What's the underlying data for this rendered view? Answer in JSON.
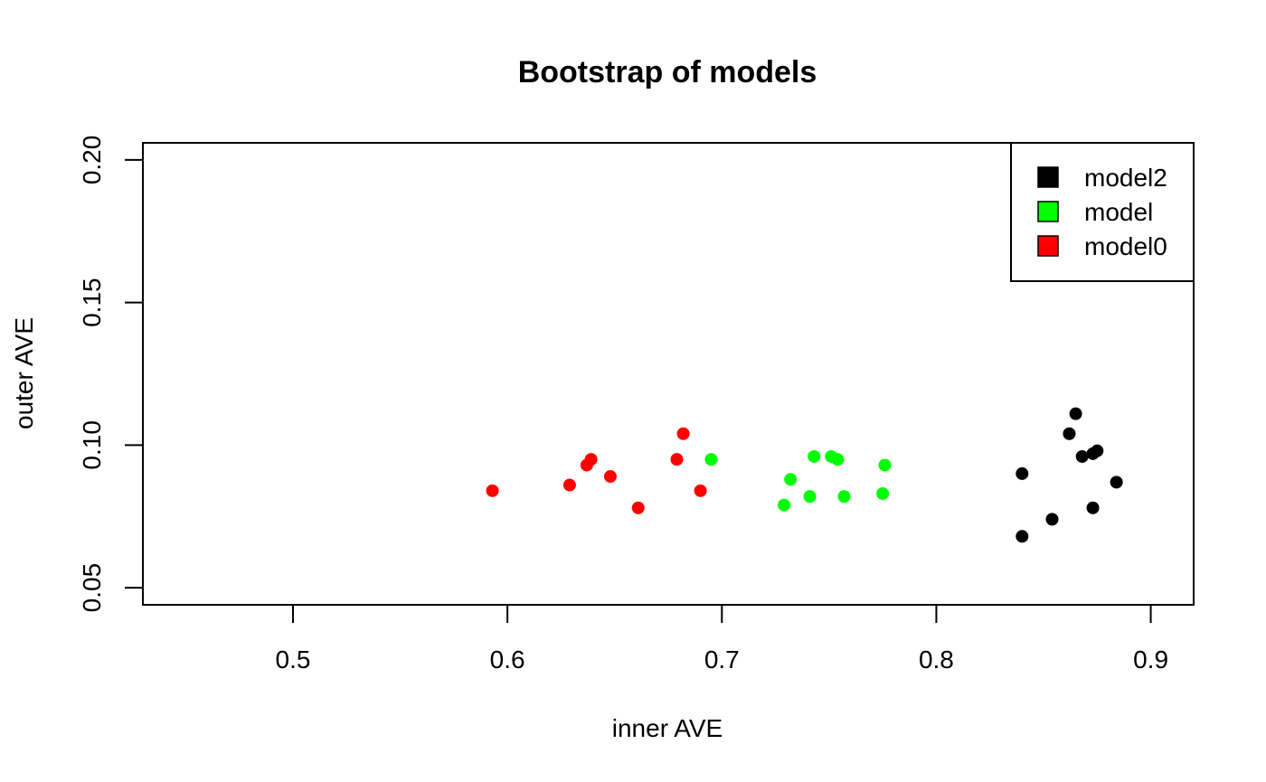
{
  "chart_data": {
    "type": "scatter",
    "title": "Bootstrap of models",
    "xlabel": "inner AVE",
    "ylabel": "outer AVE",
    "xlim": [
      0.43,
      0.92
    ],
    "ylim": [
      0.044,
      0.206
    ],
    "x_ticks": [
      0.5,
      0.6,
      0.7,
      0.8,
      0.9
    ],
    "x_tick_labels": [
      "0.5",
      "0.6",
      "0.7",
      "0.8",
      "0.9"
    ],
    "y_ticks": [
      0.05,
      0.1,
      0.15,
      0.2
    ],
    "y_tick_labels": [
      "0.05",
      "0.10",
      "0.15",
      "0.20"
    ],
    "grid": false,
    "legend_position": "top-right",
    "series": [
      {
        "name": "model2",
        "color": "#000000",
        "points": [
          [
            0.84,
            0.09
          ],
          [
            0.84,
            0.068
          ],
          [
            0.854,
            0.074
          ],
          [
            0.862,
            0.104
          ],
          [
            0.865,
            0.111
          ],
          [
            0.868,
            0.096
          ],
          [
            0.873,
            0.097
          ],
          [
            0.875,
            0.098
          ],
          [
            0.873,
            0.078
          ],
          [
            0.884,
            0.087
          ]
        ]
      },
      {
        "name": "model",
        "color": "#00ff00",
        "points": [
          [
            0.695,
            0.095
          ],
          [
            0.729,
            0.079
          ],
          [
            0.732,
            0.088
          ],
          [
            0.741,
            0.082
          ],
          [
            0.743,
            0.096
          ],
          [
            0.751,
            0.096
          ],
          [
            0.754,
            0.095
          ],
          [
            0.757,
            0.082
          ],
          [
            0.775,
            0.083
          ],
          [
            0.776,
            0.093
          ]
        ]
      },
      {
        "name": "model0",
        "color": "#ff0000",
        "points": [
          [
            0.593,
            0.084
          ],
          [
            0.629,
            0.086
          ],
          [
            0.637,
            0.093
          ],
          [
            0.639,
            0.095
          ],
          [
            0.648,
            0.089
          ],
          [
            0.661,
            0.078
          ],
          [
            0.679,
            0.095
          ],
          [
            0.682,
            0.104
          ],
          [
            0.69,
            0.084
          ]
        ]
      }
    ]
  }
}
